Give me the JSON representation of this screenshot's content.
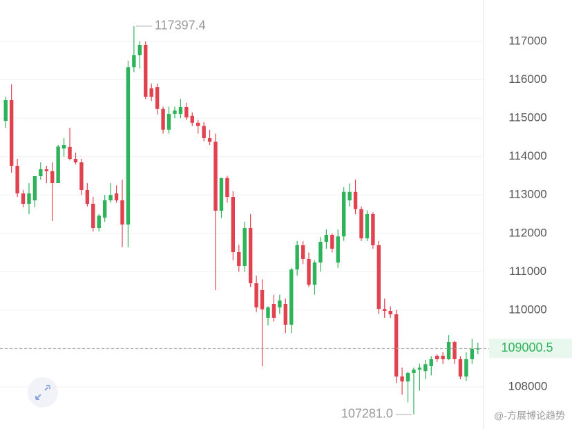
{
  "chart_data": {
    "type": "candlestick",
    "up_color": "#2fb35a",
    "down_color": "#e0434f",
    "ylim": [
      106902,
      118080
    ],
    "yticks": [
      108000,
      109000,
      110000,
      111000,
      112000,
      113000,
      114000,
      115000,
      116000,
      117000
    ],
    "grid": true,
    "high_label": "117397.4",
    "low_label": "107281.0",
    "last_price_label": "109000.5",
    "watermark": "@-方展博论趋势",
    "open": [
      114930,
      115470,
      113760,
      113040,
      112770,
      112860,
      113490,
      113670,
      113620,
      113310,
      114210,
      114250,
      113940,
      113850,
      113130,
      112770,
      112140,
      112410,
      112860,
      113040,
      112860,
      112230,
      116330,
      116640,
      116910,
      115780,
      115810,
      115240,
      114700,
      115110,
      115110,
      115290,
      115060,
      114880,
      114800,
      114480,
      114390,
      112590,
      113440,
      112950,
      111510,
      111150,
      112140,
      110700,
      110520,
      109800,
      110160,
      110070,
      110160,
      109620,
      111060,
      111690,
      111330,
      110660,
      111240,
      111780,
      111960,
      111240,
      111920,
      112860,
      113080,
      112630,
      111870,
      112500,
      111690,
      110030,
      109980,
      109890,
      108270,
      108140,
      108360,
      108450,
      108410,
      108540,
      108810,
      108810,
      108720,
      109170,
      108720,
      108270,
      108720,
      108990
    ],
    "high": [
      115560,
      115880,
      113940,
      113130,
      113310,
      113490,
      113850,
      113760,
      113850,
      114300,
      114480,
      114750,
      114100,
      113940,
      113310,
      112950,
      112500,
      113000,
      113310,
      113250,
      113400,
      116500,
      117397.4,
      117000,
      117000,
      115900,
      115900,
      115300,
      115300,
      115300,
      115500,
      115400,
      115150,
      114950,
      114900,
      114700,
      114600,
      113450,
      113500,
      113100,
      111700,
      112300,
      112500,
      110900,
      110800,
      110100,
      110400,
      110400,
      110300,
      111100,
      111800,
      111800,
      111500,
      111300,
      111900,
      112100,
      112000,
      112100,
      113200,
      113300,
      113400,
      112700,
      112600,
      112550,
      111800,
      110300,
      110100,
      110000,
      108500,
      108400,
      108500,
      108600,
      108700,
      108800,
      108850,
      108900,
      109350,
      109200,
      108800,
      108900,
      109250,
      109150
    ],
    "low": [
      114750,
      113580,
      112950,
      112680,
      112500,
      112680,
      113400,
      113310,
      112320,
      113310,
      114000,
      113900,
      113800,
      113000,
      112700,
      112050,
      112050,
      112300,
      112800,
      112800,
      111640,
      111640,
      116200,
      116300,
      115500,
      115450,
      115100,
      114600,
      114600,
      115000,
      115000,
      114950,
      114800,
      114600,
      114400,
      114300,
      110520,
      112400,
      112800,
      111300,
      111000,
      111000,
      110600,
      109950,
      108540,
      109600,
      109700,
      109900,
      109400,
      109400,
      110900,
      111200,
      110600,
      110400,
      111000,
      111600,
      111500,
      111100,
      111800,
      112700,
      112500,
      111800,
      111800,
      111600,
      109900,
      109800,
      109800,
      108100,
      107800,
      107600,
      107281,
      107900,
      108200,
      108300,
      108650,
      108600,
      108700,
      108600,
      108200,
      108150,
      108600,
      108850
    ],
    "close": [
      115470,
      113760,
      113040,
      112770,
      113040,
      113490,
      113670,
      113620,
      113310,
      114260,
      114300,
      113940,
      113850,
      113130,
      112770,
      112140,
      112460,
      112860,
      113000,
      112860,
      112230,
      116330,
      116640,
      116910,
      115560,
      115560,
      115240,
      114700,
      115110,
      115200,
      115290,
      115020,
      114880,
      114800,
      114480,
      114390,
      112590,
      113440,
      112950,
      111510,
      111150,
      112140,
      110700,
      110070,
      110020,
      110070,
      109800,
      110250,
      109620,
      111060,
      111690,
      111330,
      110660,
      111240,
      111780,
      111960,
      111600,
      111920,
      113080,
      113080,
      112630,
      111870,
      112500,
      111690,
      110030,
      109980,
      109890,
      108270,
      108140,
      108360,
      108450,
      108500,
      108590,
      108720,
      108720,
      108720,
      109170,
      108720,
      108270,
      108720,
      108990,
      109000.5
    ]
  }
}
